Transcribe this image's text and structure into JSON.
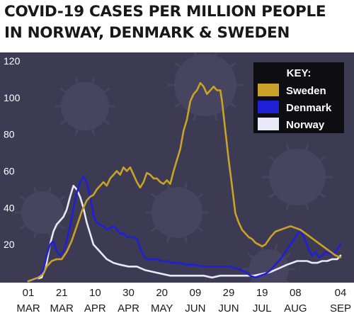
{
  "title_lines": [
    "COVID-19 CASES PER MILLION PEOPLE",
    "IN NORWAY, DENMARK & SWEDEN"
  ],
  "colors": {
    "background": "#3d3b54",
    "Sweden": "#c9a227",
    "Denmark": "#1f1fd6",
    "Norway": "#e8e8f6",
    "axis_text": "#1a1a1a",
    "legend_bg": "#0e0e12",
    "legend_text": "#ffffff"
  },
  "chart_data": {
    "type": "line",
    "title": "COVID-19 CASES PER MILLION PEOPLE IN NORWAY, DENMARK & SWEDEN",
    "xlabel": "",
    "ylabel": "",
    "ylim": [
      0,
      120
    ],
    "yticks": [
      20,
      40,
      60,
      80,
      100,
      120
    ],
    "x_ticks": [
      {
        "day": 0,
        "day_label": "01",
        "month_label": "MAR"
      },
      {
        "day": 20,
        "day_label": "21",
        "month_label": "MAR"
      },
      {
        "day": 40,
        "day_label": "10",
        "month_label": "APR"
      },
      {
        "day": 60,
        "day_label": "30",
        "month_label": "APR"
      },
      {
        "day": 80,
        "day_label": "20",
        "month_label": "MAY"
      },
      {
        "day": 100,
        "day_label": "09",
        "month_label": "JUN"
      },
      {
        "day": 120,
        "day_label": "29",
        "month_label": "JUN"
      },
      {
        "day": 140,
        "day_label": "19",
        "month_label": "JUL"
      },
      {
        "day": 160,
        "day_label": "08",
        "month_label": "AUG"
      },
      {
        "day": 187,
        "day_label": "04",
        "month_label": "SEP"
      }
    ],
    "xlim": [
      0,
      187
    ],
    "grid": false,
    "legend": {
      "title": "KEY:",
      "position": "top-right"
    },
    "series": [
      {
        "name": "Sweden",
        "points": [
          [
            0,
            0
          ],
          [
            3,
            1
          ],
          [
            6,
            2
          ],
          [
            9,
            4
          ],
          [
            11,
            8
          ],
          [
            14,
            11
          ],
          [
            17,
            12
          ],
          [
            20,
            12
          ],
          [
            23,
            16
          ],
          [
            26,
            22
          ],
          [
            29,
            30
          ],
          [
            32,
            38
          ],
          [
            35,
            44
          ],
          [
            37,
            46
          ],
          [
            39,
            47
          ],
          [
            41,
            50
          ],
          [
            43,
            52
          ],
          [
            45,
            54
          ],
          [
            47,
            52
          ],
          [
            49,
            56
          ],
          [
            51,
            58
          ],
          [
            53,
            60
          ],
          [
            55,
            58
          ],
          [
            57,
            62
          ],
          [
            59,
            60
          ],
          [
            61,
            62
          ],
          [
            63,
            58
          ],
          [
            65,
            54
          ],
          [
            67,
            51
          ],
          [
            69,
            54
          ],
          [
            71,
            59
          ],
          [
            73,
            58
          ],
          [
            75,
            56
          ],
          [
            77,
            56
          ],
          [
            79,
            54
          ],
          [
            81,
            53
          ],
          [
            83,
            55
          ],
          [
            85,
            53
          ],
          [
            87,
            60
          ],
          [
            89,
            66
          ],
          [
            91,
            72
          ],
          [
            93,
            82
          ],
          [
            95,
            88
          ],
          [
            97,
            98
          ],
          [
            99,
            102
          ],
          [
            101,
            104
          ],
          [
            103,
            108
          ],
          [
            105,
            106
          ],
          [
            107,
            102
          ],
          [
            109,
            104
          ],
          [
            111,
            106
          ],
          [
            113,
            104
          ],
          [
            115,
            104
          ],
          [
            116,
            98
          ],
          [
            118,
            82
          ],
          [
            120,
            66
          ],
          [
            122,
            52
          ],
          [
            124,
            37
          ],
          [
            126,
            32
          ],
          [
            128,
            28
          ],
          [
            130,
            26
          ],
          [
            132,
            24
          ],
          [
            134,
            23
          ],
          [
            136,
            21
          ],
          [
            138,
            20
          ],
          [
            140,
            19
          ],
          [
            142,
            20
          ],
          [
            145,
            24
          ],
          [
            148,
            27
          ],
          [
            151,
            28
          ],
          [
            154,
            29
          ],
          [
            157,
            30
          ],
          [
            160,
            29
          ],
          [
            163,
            28
          ],
          [
            166,
            26
          ],
          [
            169,
            24
          ],
          [
            172,
            22
          ],
          [
            175,
            20
          ],
          [
            178,
            18
          ],
          [
            181,
            16
          ],
          [
            184,
            14
          ],
          [
            187,
            13
          ]
        ]
      },
      {
        "name": "Denmark",
        "points": [
          [
            0,
            0
          ],
          [
            5,
            1
          ],
          [
            9,
            6
          ],
          [
            11,
            14
          ],
          [
            13,
            20
          ],
          [
            15,
            22
          ],
          [
            17,
            16
          ],
          [
            19,
            14
          ],
          [
            21,
            16
          ],
          [
            23,
            22
          ],
          [
            25,
            30
          ],
          [
            27,
            40
          ],
          [
            29,
            48
          ],
          [
            31,
            54
          ],
          [
            33,
            57
          ],
          [
            35,
            54
          ],
          [
            37,
            46
          ],
          [
            39,
            36
          ],
          [
            41,
            32
          ],
          [
            43,
            31
          ],
          [
            45,
            30
          ],
          [
            47,
            28
          ],
          [
            49,
            29
          ],
          [
            51,
            30
          ],
          [
            53,
            28
          ],
          [
            55,
            26
          ],
          [
            57,
            26
          ],
          [
            59,
            24
          ],
          [
            61,
            24
          ],
          [
            63,
            24
          ],
          [
            65,
            23
          ],
          [
            67,
            18
          ],
          [
            69,
            14
          ],
          [
            71,
            12
          ],
          [
            74,
            12
          ],
          [
            77,
            12
          ],
          [
            80,
            11
          ],
          [
            83,
            11
          ],
          [
            86,
            10
          ],
          [
            90,
            10
          ],
          [
            95,
            9
          ],
          [
            100,
            9
          ],
          [
            105,
            8
          ],
          [
            110,
            8
          ],
          [
            115,
            8
          ],
          [
            120,
            8
          ],
          [
            125,
            7
          ],
          [
            130,
            5
          ],
          [
            133,
            3
          ],
          [
            136,
            2
          ],
          [
            139,
            3
          ],
          [
            142,
            4
          ],
          [
            145,
            6
          ],
          [
            148,
            9
          ],
          [
            151,
            12
          ],
          [
            154,
            16
          ],
          [
            157,
            20
          ],
          [
            160,
            24
          ],
          [
            162,
            27
          ],
          [
            164,
            26
          ],
          [
            166,
            22
          ],
          [
            168,
            17
          ],
          [
            170,
            14
          ],
          [
            172,
            16
          ],
          [
            174,
            13
          ],
          [
            176,
            14
          ],
          [
            178,
            16
          ],
          [
            180,
            15
          ],
          [
            182,
            15
          ],
          [
            184,
            16
          ],
          [
            186,
            19
          ],
          [
            187,
            20
          ]
        ]
      },
      {
        "name": "Norway",
        "points": [
          [
            0,
            0
          ],
          [
            8,
            2
          ],
          [
            11,
            10
          ],
          [
            13,
            20
          ],
          [
            15,
            27
          ],
          [
            17,
            31
          ],
          [
            19,
            33
          ],
          [
            21,
            35
          ],
          [
            23,
            39
          ],
          [
            25,
            46
          ],
          [
            27,
            52
          ],
          [
            29,
            50
          ],
          [
            31,
            46
          ],
          [
            33,
            40
          ],
          [
            35,
            32
          ],
          [
            37,
            26
          ],
          [
            39,
            20
          ],
          [
            41,
            18
          ],
          [
            43,
            16
          ],
          [
            45,
            14
          ],
          [
            47,
            12
          ],
          [
            49,
            11
          ],
          [
            51,
            10
          ],
          [
            55,
            9
          ],
          [
            60,
            8
          ],
          [
            65,
            8
          ],
          [
            70,
            6
          ],
          [
            75,
            5
          ],
          [
            80,
            4
          ],
          [
            85,
            3
          ],
          [
            90,
            3
          ],
          [
            95,
            3
          ],
          [
            100,
            3
          ],
          [
            105,
            3
          ],
          [
            110,
            2
          ],
          [
            115,
            3
          ],
          [
            120,
            3
          ],
          [
            125,
            3
          ],
          [
            130,
            3
          ],
          [
            135,
            3
          ],
          [
            140,
            4
          ],
          [
            145,
            5
          ],
          [
            150,
            7
          ],
          [
            155,
            9
          ],
          [
            158,
            10
          ],
          [
            161,
            11
          ],
          [
            164,
            11
          ],
          [
            167,
            11
          ],
          [
            170,
            10
          ],
          [
            173,
            10
          ],
          [
            176,
            11
          ],
          [
            179,
            11
          ],
          [
            182,
            12
          ],
          [
            185,
            12
          ],
          [
            187,
            14
          ]
        ]
      }
    ]
  }
}
